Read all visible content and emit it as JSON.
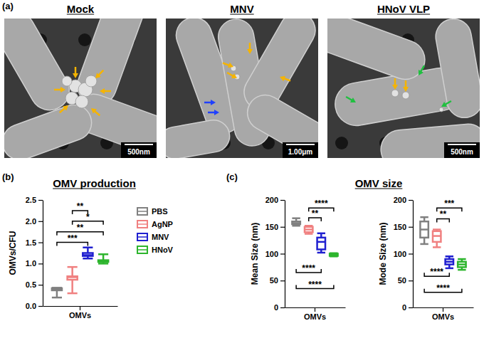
{
  "panel_labels": [
    "(a)",
    "(b)",
    "(c)"
  ],
  "images": [
    {
      "title": "Mock",
      "scale_bar": "500nm"
    },
    {
      "title": "MNV",
      "scale_bar": "1.00μm"
    },
    {
      "title": "HNoV VLP",
      "scale_bar": "500nm"
    }
  ],
  "group_title": "OMV size",
  "chart_data": [
    {
      "type": "box",
      "title": "OMV production",
      "ylabel": "OMVs/CFU",
      "categories": [
        "OMVs"
      ],
      "ylim": [
        0,
        2.5
      ],
      "yticks": [
        {
          "value": 0,
          "label": "0.0"
        },
        0.5,
        {
          "value": 1,
          "label": "1.0"
        },
        1.5,
        {
          "value": 2,
          "label": "2.0"
        },
        2.5
      ],
      "legend": "right",
      "series": [
        {
          "name": "PBS",
          "color": "#808080",
          "values": [
            [
              0.2,
              0.37,
              0.4,
              0.42,
              0.43
            ]
          ]
        },
        {
          "name": "AgNP",
          "color": "#f08080",
          "values": [
            [
              0.3,
              0.62,
              0.68,
              0.7,
              0.92
            ]
          ]
        },
        {
          "name": "MNV",
          "color": "#2020d0",
          "values": [
            [
              1.12,
              1.18,
              1.2,
              1.25,
              1.38
            ]
          ]
        },
        {
          "name": "HNoV",
          "color": "#2db52d",
          "values": [
            [
              1.0,
              1.04,
              1.05,
              1.08,
              1.22
            ]
          ]
        }
      ],
      "annotations": [
        {
          "between": [
            1,
            2
          ],
          "y": 2.25,
          "label": "**"
        },
        {
          "between": [
            1,
            3
          ],
          "y": 2.0,
          "label": "*"
        },
        {
          "between": [
            0,
            3
          ],
          "y": 1.75,
          "label": "**"
        },
        {
          "between": [
            0,
            2
          ],
          "y": 1.5,
          "label": "***"
        }
      ]
    },
    {
      "type": "box",
      "ylabel": "Mean Size (nm)",
      "categories": [
        "OMVs"
      ],
      "ylim": [
        0,
        200
      ],
      "yticks": [
        0,
        50,
        100,
        150,
        200
      ],
      "series": [
        {
          "color": "#808080",
          "values": [
            [
              152,
              155,
              157,
              160,
              166
            ]
          ]
        },
        {
          "color": "#f08080",
          "values": [
            [
              137,
              140,
              145,
              150,
              152
            ]
          ]
        },
        {
          "color": "#2020d0",
          "values": [
            [
              102,
              108,
              122,
              130,
              138
            ]
          ]
        },
        {
          "color": "#2db52d",
          "values": [
            [
              95,
              96,
              98,
              100,
              101
            ]
          ]
        }
      ],
      "annotations": [
        {
          "between": [
            1,
            3
          ],
          "y": 185,
          "label": "****"
        },
        {
          "between": [
            1,
            2
          ],
          "y": 167,
          "label": "**"
        },
        {
          "between": [
            0,
            2
          ],
          "y": 65,
          "label": "****"
        },
        {
          "between": [
            0,
            3
          ],
          "y": 35,
          "label": "****"
        }
      ]
    },
    {
      "type": "box",
      "ylabel": "Mode Size (nm)",
      "categories": [
        "OMVs"
      ],
      "ylim": [
        0,
        200
      ],
      "yticks": [
        0,
        50,
        100,
        150,
        200
      ],
      "series": [
        {
          "color": "#808080",
          "values": [
            [
              118,
              130,
              145,
              160,
              168
            ]
          ]
        },
        {
          "color": "#f08080",
          "values": [
            [
              112,
              122,
              133,
              142,
              145
            ]
          ]
        },
        {
          "color": "#2020d0",
          "values": [
            [
              73,
              80,
              85,
              90,
              95
            ]
          ]
        },
        {
          "color": "#2db52d",
          "values": [
            [
              70,
              75,
              80,
              85,
              90
            ]
          ]
        }
      ],
      "annotations": [
        {
          "between": [
            1,
            3
          ],
          "y": 185,
          "label": "***"
        },
        {
          "between": [
            1,
            2
          ],
          "y": 165,
          "label": "**"
        },
        {
          "between": [
            0,
            2
          ],
          "y": 58,
          "label": "****"
        },
        {
          "between": [
            0,
            3
          ],
          "y": 28,
          "label": "****"
        }
      ]
    }
  ]
}
